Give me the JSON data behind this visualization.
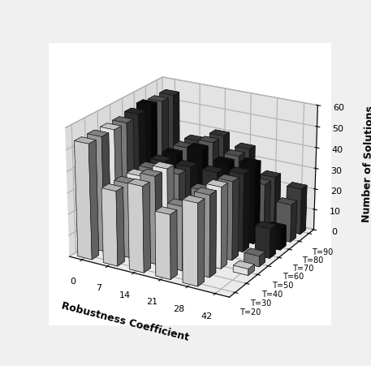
{
  "xlabel": "Robustness Coefficient",
  "zlabel": "Number of Solutions",
  "x_ticks": [
    0,
    7,
    14,
    21,
    28,
    42
  ],
  "t_labels": [
    "T=20",
    "T=30",
    "T=40",
    "T=50",
    "T=60",
    "T=70",
    "T=80",
    "T=90"
  ],
  "zlim": [
    0,
    60
  ],
  "z_ticks": [
    0,
    10,
    20,
    30,
    40,
    50,
    60
  ],
  "bar_data": [
    [
      54,
      54,
      54,
      54,
      55,
      56,
      55,
      55
    ],
    [
      35,
      35,
      35,
      35,
      35,
      35,
      35,
      35
    ],
    [
      40,
      41,
      41,
      35,
      35,
      40,
      40,
      40
    ],
    [
      30,
      30,
      9,
      30,
      35,
      36,
      36,
      36
    ],
    [
      38,
      38,
      38,
      37,
      37,
      38,
      25,
      25
    ],
    [
      0,
      0,
      3,
      5,
      14,
      10,
      18,
      22
    ]
  ],
  "bar_colors_per_t": [
    "#e8e8e8",
    "#aaaaaa",
    "#ffffff",
    "#888888",
    "#333333",
    "#111111",
    "#666666",
    "#444444"
  ],
  "elev": 22,
  "azim": -60,
  "pane_color_x": "#b8b8b8",
  "pane_color_y": "#c8c8c8",
  "pane_color_z": "#d8d8d8"
}
